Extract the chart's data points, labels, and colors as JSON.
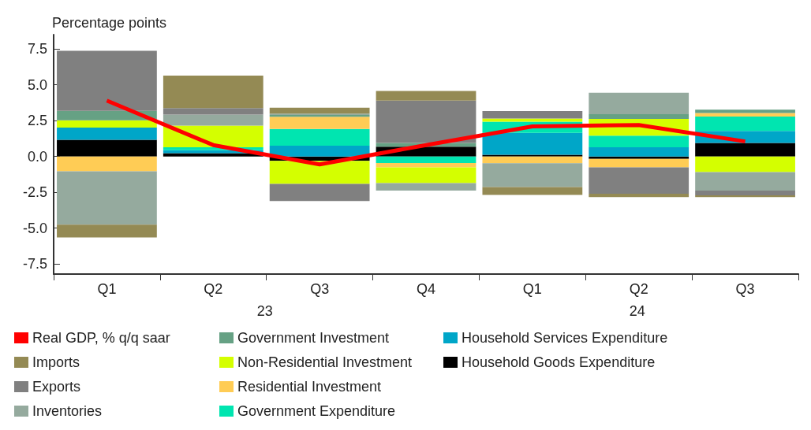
{
  "chart_data": {
    "type": "bar",
    "stacked": true,
    "ylabel": "Percentage points",
    "categories": [
      "Q1",
      "Q2",
      "Q3",
      "Q4",
      "Q1",
      "Q2",
      "Q3"
    ],
    "annotations": [
      "23",
      "24"
    ],
    "ylim": [
      -8.2,
      8.5
    ],
    "yticks": [
      {
        "value": -7.5,
        "label": "-7.5"
      },
      {
        "value": -5,
        "label": "-5.0"
      },
      {
        "value": -2.5,
        "label": "-2.5"
      },
      {
        "value": 0,
        "label": "0.0"
      },
      {
        "value": 2.5,
        "label": "2.5"
      },
      {
        "value": 5,
        "label": "5.0"
      },
      {
        "value": 7.5,
        "label": "7.5"
      }
    ],
    "grid": false,
    "legend": "bottom",
    "series": [
      {
        "name": "Household Goods Expenditure",
        "color": "#000000",
        "values": [
          1.16,
          0.23,
          -0.31,
          0.69,
          0.12,
          -0.16,
          0.95
        ]
      },
      {
        "name": "Household Services Expenditure",
        "color": "#00a6c8",
        "values": [
          0.86,
          0.21,
          0.76,
          null,
          1.53,
          0.64,
          0.84
        ]
      },
      {
        "name": "Government Expenditure",
        "color": "#00e5b0",
        "values": [
          null,
          0.21,
          1.16,
          -0.45,
          0.78,
          0.81,
          1.0
        ]
      },
      {
        "name": "Residential Investment",
        "color": "#ffcc55",
        "values": [
          -1.03,
          null,
          0.85,
          -0.31,
          -0.47,
          -0.6,
          0.24
        ]
      },
      {
        "name": "Non-Residential Investment",
        "color": "#d4ff00",
        "values": [
          0.5,
          1.5,
          -1.6,
          -1.1,
          0.22,
          1.17,
          -1.09
        ]
      },
      {
        "name": "Government Investment",
        "color": "#66a184",
        "values": [
          0.66,
          null,
          0.12,
          0.26,
          null,
          0.33,
          0.24
        ]
      },
      {
        "name": "Inventories",
        "color": "#95aa9e",
        "values": [
          -3.72,
          0.78,
          0.1,
          -0.52,
          -1.66,
          1.5,
          -1.29
        ]
      },
      {
        "name": "Exports",
        "color": "#808080",
        "values": [
          4.19,
          0.45,
          -1.19,
          2.95,
          0.52,
          -1.83,
          -0.33
        ]
      },
      {
        "name": "Imports",
        "color": "#948a54",
        "values": [
          -0.9,
          2.26,
          0.41,
          0.67,
          -0.55,
          -0.24,
          -0.12
        ]
      },
      {
        "name": "Real GDP, % q/q saar",
        "type": "line",
        "color": "#ff0000",
        "values": [
          3.9,
          0.8,
          -0.55,
          0.8,
          2.1,
          2.2,
          1.05
        ]
      }
    ]
  }
}
